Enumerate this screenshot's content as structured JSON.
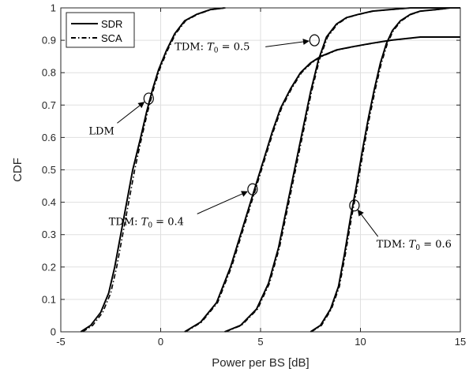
{
  "chart_data": {
    "type": "line",
    "xlabel": "Power per BS [dB]",
    "ylabel": "CDF",
    "xlim": [
      -5,
      15
    ],
    "ylim": [
      0,
      1
    ],
    "xticks": [
      "-5",
      "0",
      "5",
      "10",
      "15"
    ],
    "yticks": [
      "0",
      "0.1",
      "0.2",
      "0.3",
      "0.4",
      "0.5",
      "0.6",
      "0.7",
      "0.8",
      "0.9",
      "1"
    ],
    "grid": true,
    "legend": {
      "placement": "top-left",
      "entries": [
        {
          "label": "SDR",
          "style": "solid"
        },
        {
          "label": "SCA",
          "style": "dash-dot"
        }
      ]
    },
    "series": [
      {
        "group": "LDM",
        "name": "SDR",
        "style": "solid",
        "x": [
          -4.0,
          -3.5,
          -3.0,
          -2.6,
          -2.3,
          -2.0,
          -1.7,
          -1.4,
          -1.0,
          -0.7,
          -0.4,
          -0.1,
          0.3,
          0.7,
          1.2,
          1.8,
          2.5,
          3.2
        ],
        "y": [
          0.0,
          0.02,
          0.06,
          0.12,
          0.2,
          0.3,
          0.4,
          0.5,
          0.6,
          0.68,
          0.75,
          0.81,
          0.87,
          0.92,
          0.96,
          0.98,
          0.995,
          1.0
        ]
      },
      {
        "group": "LDM",
        "name": "SCA",
        "style": "dash-dot",
        "x": [
          -3.9,
          -3.4,
          -2.9,
          -2.5,
          -2.2,
          -1.9,
          -1.6,
          -1.3,
          -0.95,
          -0.65,
          -0.35,
          -0.05,
          0.35,
          0.75,
          1.25,
          1.85,
          2.55,
          3.25
        ],
        "y": [
          0.0,
          0.02,
          0.06,
          0.12,
          0.2,
          0.3,
          0.4,
          0.5,
          0.6,
          0.68,
          0.75,
          0.81,
          0.87,
          0.92,
          0.96,
          0.98,
          0.995,
          1.0
        ]
      },
      {
        "group": "TDM T0=0.4",
        "name": "SDR",
        "style": "solid",
        "x": [
          1.2,
          2.0,
          2.8,
          3.5,
          4.0,
          4.4,
          4.8,
          5.2,
          5.6,
          6.0,
          6.5,
          7.0,
          7.5,
          8.0,
          8.8,
          9.6,
          10.5,
          11.5,
          13.0,
          15.0
        ],
        "y": [
          0.0,
          0.03,
          0.09,
          0.2,
          0.3,
          0.38,
          0.46,
          0.54,
          0.62,
          0.69,
          0.75,
          0.8,
          0.83,
          0.85,
          0.87,
          0.88,
          0.89,
          0.9,
          0.91,
          0.91
        ]
      },
      {
        "group": "TDM T0=0.4",
        "name": "SCA",
        "style": "dash-dot",
        "x": [
          1.25,
          2.05,
          2.85,
          3.55,
          4.05,
          4.45,
          4.85,
          5.25,
          5.65,
          6.05,
          6.55,
          7.05,
          7.55,
          8.05,
          8.85,
          9.65,
          10.55,
          11.55,
          13.05,
          15.0
        ],
        "y": [
          0.0,
          0.03,
          0.09,
          0.2,
          0.3,
          0.38,
          0.46,
          0.54,
          0.62,
          0.69,
          0.75,
          0.8,
          0.83,
          0.85,
          0.87,
          0.88,
          0.89,
          0.9,
          0.91,
          0.91
        ]
      },
      {
        "group": "TDM T0=0.5",
        "name": "SDR",
        "style": "solid",
        "x": [
          3.2,
          4.0,
          4.8,
          5.4,
          5.9,
          6.3,
          6.7,
          7.1,
          7.5,
          7.9,
          8.3,
          8.8,
          9.3,
          9.9,
          10.6,
          11.5,
          12.5,
          13.5,
          15.0
        ],
        "y": [
          0.0,
          0.02,
          0.07,
          0.15,
          0.26,
          0.38,
          0.5,
          0.62,
          0.74,
          0.84,
          0.91,
          0.95,
          0.97,
          0.98,
          0.99,
          0.995,
          1.0,
          1.0,
          1.0
        ]
      },
      {
        "group": "TDM T0=0.5",
        "name": "SCA",
        "style": "dash-dot",
        "x": [
          3.25,
          4.05,
          4.85,
          5.45,
          5.95,
          6.35,
          6.75,
          7.15,
          7.55,
          7.95,
          8.35,
          8.85,
          9.35,
          9.95,
          10.65,
          11.55,
          12.55,
          13.55,
          15.0
        ],
        "y": [
          0.0,
          0.02,
          0.07,
          0.15,
          0.26,
          0.38,
          0.5,
          0.62,
          0.74,
          0.84,
          0.91,
          0.95,
          0.97,
          0.98,
          0.99,
          0.995,
          1.0,
          1.0,
          1.0
        ]
      },
      {
        "group": "TDM T0=0.6",
        "name": "SDR",
        "style": "solid",
        "x": [
          7.5,
          8.0,
          8.5,
          8.9,
          9.2,
          9.5,
          9.8,
          10.1,
          10.4,
          10.7,
          11.0,
          11.3,
          11.6,
          12.0,
          12.5,
          13.0,
          13.8,
          14.5,
          15.0
        ],
        "y": [
          0.0,
          0.02,
          0.07,
          0.14,
          0.24,
          0.35,
          0.45,
          0.56,
          0.66,
          0.75,
          0.83,
          0.89,
          0.93,
          0.96,
          0.98,
          0.99,
          0.995,
          1.0,
          1.0
        ]
      },
      {
        "group": "TDM T0=0.6",
        "name": "SCA",
        "style": "dash-dot",
        "x": [
          7.55,
          8.05,
          8.55,
          8.95,
          9.25,
          9.55,
          9.85,
          10.15,
          10.45,
          10.75,
          11.05,
          11.35,
          11.65,
          12.05,
          12.55,
          13.05,
          13.85,
          14.55,
          15.0
        ],
        "y": [
          0.0,
          0.02,
          0.07,
          0.14,
          0.24,
          0.35,
          0.45,
          0.56,
          0.66,
          0.75,
          0.83,
          0.89,
          0.93,
          0.96,
          0.98,
          0.99,
          0.995,
          1.0,
          1.0
        ]
      }
    ],
    "annotations": [
      {
        "label": "LDM",
        "circle_at": [
          -0.6,
          0.72
        ],
        "text_at": [
          -3.6,
          0.61
        ]
      },
      {
        "label": "TDM: T",
        "sub": "0",
        "tail": " = 0.4",
        "circle_at": [
          4.6,
          0.44
        ],
        "text_at": [
          -2.6,
          0.33
        ]
      },
      {
        "label": "TDM: T",
        "sub": "0",
        "tail": " = 0.5",
        "circle_at": [
          7.7,
          0.9
        ],
        "text_at": [
          0.7,
          0.87
        ]
      },
      {
        "label": "TDM: T",
        "sub": "0",
        "tail": " = 0.6",
        "circle_at": [
          9.7,
          0.39
        ],
        "text_at": [
          10.8,
          0.26
        ]
      }
    ]
  }
}
